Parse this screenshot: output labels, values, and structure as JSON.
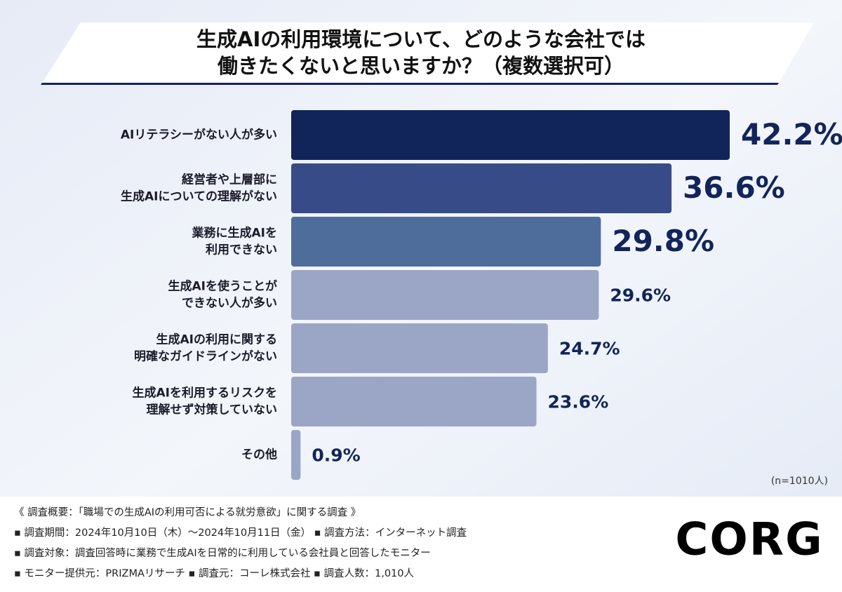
{
  "chart_data": {
    "type": "bar",
    "orientation": "horizontal",
    "title": [
      "生成AIの利用環境について、どのような会社では",
      "働きたくないと思いますか？（複数選択可）"
    ],
    "categories": [
      [
        "AIリテラシーがない人が多い"
      ],
      [
        "経営者や上層部に",
        "生成AIについての理解がない"
      ],
      [
        "業務に生成AIを",
        "利用できない"
      ],
      [
        "生成AIを使うことが",
        "できない人が多い"
      ],
      [
        "生成AIの利用に関する",
        "明確なガイドラインがない"
      ],
      [
        "生成AIを利用するリスクを",
        "理解せず対策していない"
      ],
      [
        "その他"
      ]
    ],
    "values": [
      42.2,
      36.6,
      29.8,
      29.6,
      24.7,
      23.6,
      0.9
    ],
    "value_labels": [
      "42.2%",
      "36.6%",
      "29.8%",
      "29.6%",
      "24.7%",
      "23.6%",
      "0.9%"
    ],
    "colors": [
      "#12255a",
      "#364b88",
      "#4f6d9b",
      "#9ba6c6",
      "#9ba6c6",
      "#9ba6c6",
      "#9ba6c6"
    ],
    "note": "(n=1010人)",
    "footer": [
      "《 調査概要：「職場での生成AIの利用可否による就労意欲」に関する調査 》",
      "▪ 調査期間：2024年10月10日（木）～2024年10月11日（金） ▪ 調査方法：インターネット調査",
      "▪ 調査対象：調査回答時に業務で生成AIを日常的に利用している会社員と回答したモニター",
      "▪ モニター提供元：PRIZMAリサーチ ▪ 調査元：コーレ株式会社 ▪ 調査人数：1,010人"
    ],
    "logo": "CORG"
  }
}
